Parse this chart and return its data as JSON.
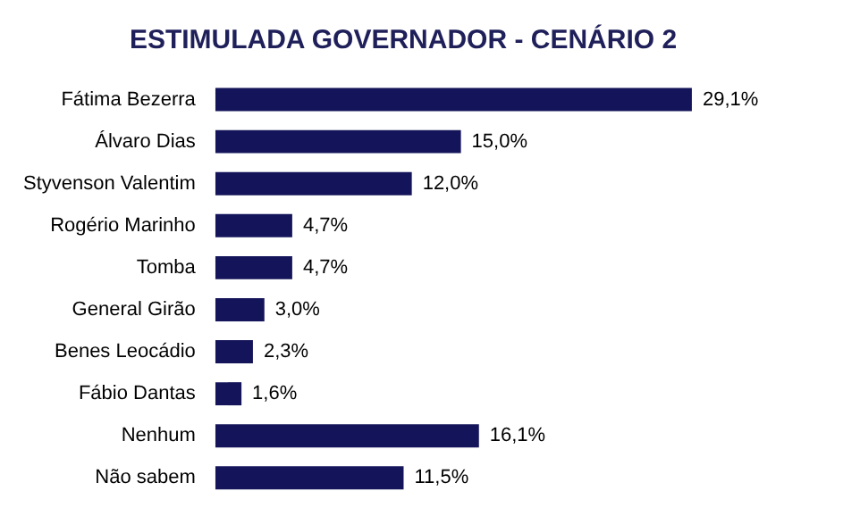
{
  "chart_data": {
    "type": "bar",
    "orientation": "horizontal",
    "title": "ESTIMULADA GOVERNADOR - CENÁRIO 2",
    "categories": [
      "Fátima Bezerra",
      "Álvaro Dias",
      "Styvenson Valentim",
      "Rogério Marinho",
      "Tomba",
      "General Girão",
      "Benes Leocádio",
      "Fábio Dantas",
      "Nenhum",
      "Não sabem"
    ],
    "values": [
      29.1,
      15.0,
      12.0,
      4.7,
      4.7,
      3.0,
      2.3,
      1.6,
      16.1,
      11.5
    ],
    "value_labels": [
      "29,1%",
      "15,0%",
      "12,0%",
      "4,7%",
      "4,7%",
      "3,0%",
      "2,3%",
      "1,6%",
      "16,1%",
      "11,5%"
    ],
    "color": "#14145a",
    "tick_labels": "y"
  }
}
